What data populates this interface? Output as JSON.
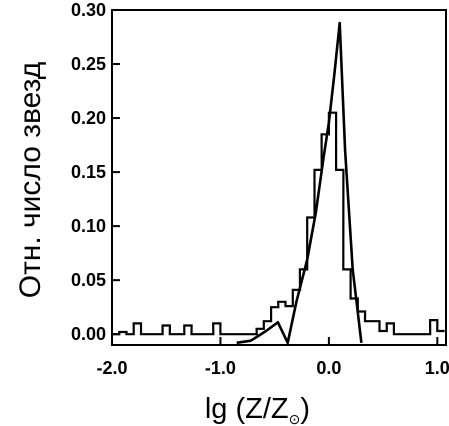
{
  "chart_data": {
    "type": "line",
    "xlabel": "lg (Z/Z",
    "xlabel_subscript": "⊙",
    "xlabel_close": ")",
    "ylabel": "Отн. число звезд",
    "xlim": [
      -2.0,
      1.08
    ],
    "ylim": [
      -0.01,
      0.3
    ],
    "x_ticks": [
      {
        "value": -2.0,
        "label": "-2.0"
      },
      {
        "value": -1.0,
        "label": "-1.0"
      },
      {
        "value": 0.0,
        "label": "0.0"
      },
      {
        "value": 1.0,
        "label": "1.0"
      }
    ],
    "y_ticks": [
      {
        "value": 0.0,
        "label": "0.00"
      },
      {
        "value": 0.05,
        "label": "0.05"
      },
      {
        "value": 0.1,
        "label": "0.10"
      },
      {
        "value": 0.15,
        "label": "0.15"
      },
      {
        "value": 0.2,
        "label": "0.20"
      },
      {
        "value": 0.25,
        "label": "0.25"
      },
      {
        "value": 0.3,
        "label": "0.30"
      }
    ],
    "series": [
      {
        "style": "histogram",
        "bin_width": 0.067,
        "x_left": [
          -2.0,
          -1.933,
          -1.867,
          -1.8,
          -1.733,
          -1.667,
          -1.6,
          -1.533,
          -1.467,
          -1.4,
          -1.333,
          -1.267,
          -1.2,
          -1.133,
          -1.067,
          -1.0,
          -0.933,
          -0.867,
          -0.8,
          -0.733,
          -0.667,
          -0.6,
          -0.533,
          -0.467,
          -0.4,
          -0.333,
          -0.267,
          -0.2,
          -0.133,
          -0.067,
          0.0,
          0.067,
          0.133,
          0.2,
          0.267,
          0.333,
          0.4,
          0.467,
          0.533,
          0.6,
          0.667,
          0.733,
          0.8,
          0.867,
          0.933,
          1.0
        ],
        "values": [
          0.0,
          0.002,
          0.0,
          0.01,
          0.0,
          0.0,
          0.0,
          0.008,
          0.0,
          0.0,
          0.008,
          0.0,
          0.0,
          0.0,
          0.01,
          0.0,
          0.0,
          0.0,
          0.0,
          0.0,
          0.005,
          0.012,
          0.025,
          0.03,
          0.026,
          0.041,
          0.06,
          0.108,
          0.152,
          0.185,
          0.205,
          0.152,
          0.06,
          0.033,
          0.021,
          0.012,
          0.012,
          0.003,
          0.01,
          0.0,
          0.0,
          0.0,
          0.0,
          0.0,
          0.013,
          0.003
        ]
      },
      {
        "style": "line",
        "x": [
          -0.85,
          -0.72,
          -0.58,
          -0.47,
          -0.38,
          -0.3,
          -0.2,
          -0.12,
          -0.05,
          0.0,
          0.05,
          0.1,
          0.15,
          0.22,
          0.3
        ],
        "y": [
          -0.008,
          -0.006,
          0.003,
          0.011,
          -0.008,
          0.03,
          0.069,
          0.113,
          0.163,
          0.196,
          0.24,
          0.288,
          0.17,
          0.06,
          -0.008
        ]
      }
    ]
  }
}
